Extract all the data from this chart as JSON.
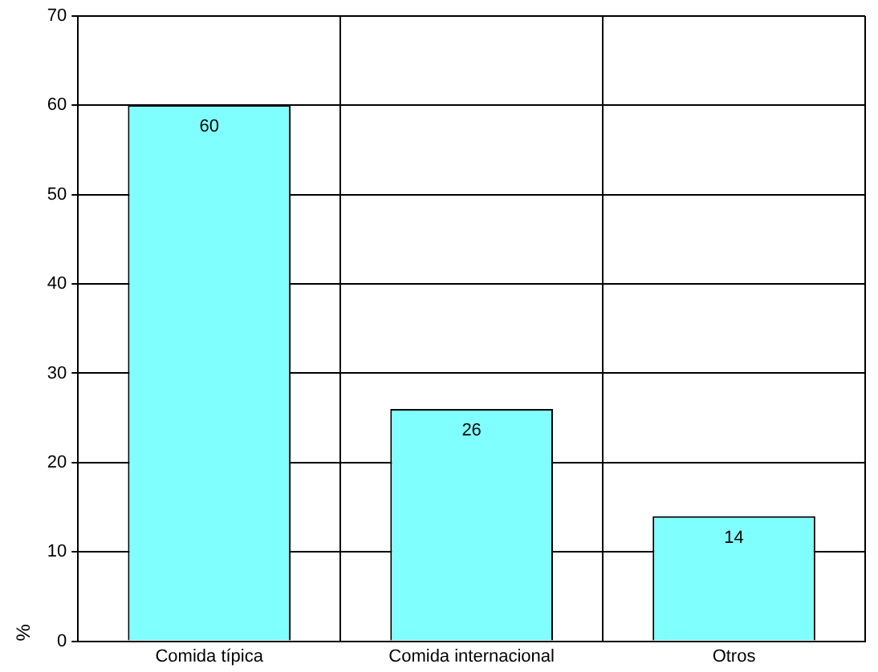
{
  "chart_data": {
    "type": "bar",
    "ylabel": "%",
    "categories": [
      "Comida típica",
      "Comida internacional",
      "Otros"
    ],
    "values": [
      60,
      26,
      14
    ],
    "color": "#80ffff",
    "ylim": [
      0,
      70
    ],
    "yticks": [
      0,
      10,
      20,
      30,
      40,
      50,
      60,
      70
    ],
    "grid": true,
    "data_labels": true,
    "legend": false
  }
}
